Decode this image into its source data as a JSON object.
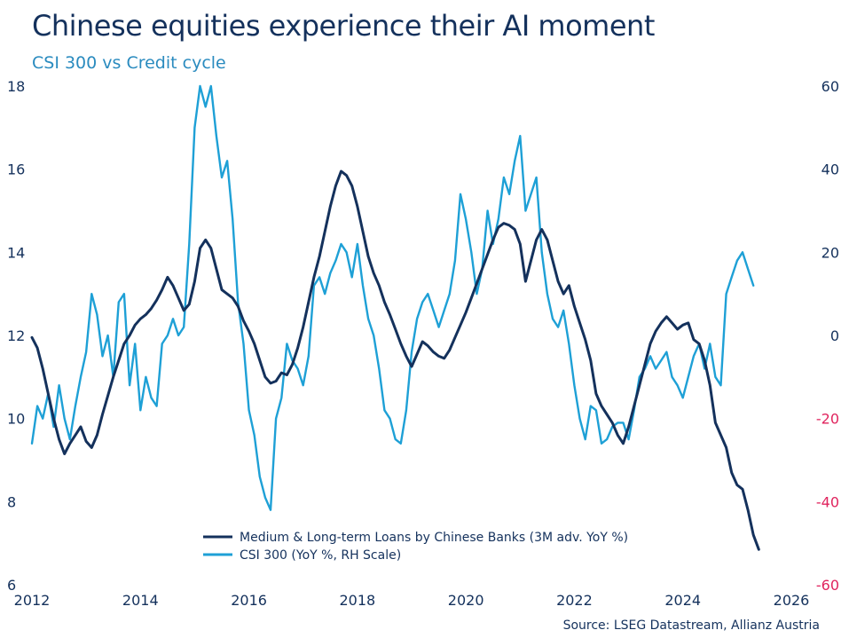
{
  "header": {
    "title": "Chinese equities experience their AI moment",
    "subtitle": "CSI 300 vs Credit cycle"
  },
  "source": "Source: LSEG Datastream, Allianz Austria",
  "colors": {
    "title": "#14315c",
    "subtitle": "#2a8bbf",
    "loans": "#14315c",
    "csi": "#1ea0d6",
    "negative_tick": "#e0245e",
    "axis_text": "#14315c"
  },
  "chart_data": {
    "type": "line",
    "x_ticks": [
      "2012",
      "2014",
      "2016",
      "2018",
      "2020",
      "2022",
      "2024",
      "2026"
    ],
    "x_tick_values": [
      2012,
      2014,
      2016,
      2018,
      2020,
      2022,
      2024,
      2026
    ],
    "xlim": [
      2012,
      2026
    ],
    "left_axis": {
      "ylim": [
        6,
        18
      ],
      "ticks": [
        "18",
        "16",
        "14",
        "12",
        "10",
        "8",
        "6"
      ],
      "tick_values": [
        18,
        16,
        14,
        12,
        10,
        8,
        6
      ]
    },
    "right_axis": {
      "ylim": [
        -60,
        60
      ],
      "ticks": [
        "60",
        "40",
        "20",
        "0",
        "-20",
        "-40",
        "-60"
      ],
      "tick_values": [
        60,
        40,
        20,
        0,
        -20,
        -40,
        -60
      ]
    },
    "legend": {
      "placement": "bottom-center",
      "entries": [
        "Medium & Long-term Loans by Chinese Banks (3M adv. YoY %)",
        "CSI 300 (YoY %, RH Scale)"
      ]
    },
    "series": [
      {
        "name": "Medium & Long-term Loans by Chinese Banks (3M adv. YoY %)",
        "axis": "left",
        "x": [
          2012.0,
          2012.1,
          2012.2,
          2012.3,
          2012.4,
          2012.5,
          2012.6,
          2012.7,
          2012.8,
          2012.9,
          2013.0,
          2013.1,
          2013.2,
          2013.3,
          2013.4,
          2013.5,
          2013.6,
          2013.7,
          2013.8,
          2013.9,
          2014.0,
          2014.1,
          2014.2,
          2014.3,
          2014.4,
          2014.5,
          2014.6,
          2014.7,
          2014.8,
          2014.9,
          2015.0,
          2015.1,
          2015.2,
          2015.3,
          2015.4,
          2015.5,
          2015.6,
          2015.7,
          2015.8,
          2015.9,
          2016.0,
          2016.1,
          2016.2,
          2016.3,
          2016.4,
          2016.5,
          2016.6,
          2016.7,
          2016.8,
          2016.9,
          2017.0,
          2017.1,
          2017.2,
          2017.3,
          2017.4,
          2017.5,
          2017.6,
          2017.7,
          2017.8,
          2017.9,
          2018.0,
          2018.1,
          2018.2,
          2018.3,
          2018.4,
          2018.5,
          2018.6,
          2018.7,
          2018.8,
          2018.9,
          2019.0,
          2019.1,
          2019.2,
          2019.3,
          2019.4,
          2019.5,
          2019.6,
          2019.7,
          2019.8,
          2019.9,
          2020.0,
          2020.1,
          2020.2,
          2020.3,
          2020.4,
          2020.5,
          2020.6,
          2020.7,
          2020.8,
          2020.9,
          2021.0,
          2021.1,
          2021.2,
          2021.3,
          2021.4,
          2021.5,
          2021.6,
          2021.7,
          2021.8,
          2021.9,
          2022.0,
          2022.1,
          2022.2,
          2022.3,
          2022.4,
          2022.5,
          2022.6,
          2022.7,
          2022.8,
          2022.9,
          2023.0,
          2023.1,
          2023.2,
          2023.3,
          2023.4,
          2023.5,
          2023.6,
          2023.7,
          2023.8,
          2023.9,
          2024.0,
          2024.1,
          2024.2,
          2024.3,
          2024.4,
          2024.5,
          2024.6,
          2024.7,
          2024.8,
          2024.9,
          2025.0,
          2025.1,
          2025.2,
          2025.3,
          2025.4
        ],
        "values": [
          11.95,
          11.7,
          11.2,
          10.6,
          10.0,
          9.5,
          9.15,
          9.4,
          9.6,
          9.8,
          9.45,
          9.3,
          9.6,
          10.1,
          10.55,
          11.0,
          11.4,
          11.8,
          12.0,
          12.25,
          12.4,
          12.5,
          12.65,
          12.85,
          13.1,
          13.4,
          13.2,
          12.9,
          12.6,
          12.75,
          13.3,
          14.1,
          14.3,
          14.1,
          13.6,
          13.1,
          13.0,
          12.9,
          12.7,
          12.35,
          12.1,
          11.8,
          11.4,
          11.0,
          10.85,
          10.9,
          11.1,
          11.05,
          11.3,
          11.7,
          12.2,
          12.8,
          13.4,
          13.9,
          14.5,
          15.1,
          15.6,
          15.95,
          15.85,
          15.6,
          15.1,
          14.5,
          13.9,
          13.5,
          13.2,
          12.8,
          12.5,
          12.15,
          11.8,
          11.5,
          11.25,
          11.55,
          11.85,
          11.75,
          11.6,
          11.5,
          11.45,
          11.65,
          11.95,
          12.25,
          12.55,
          12.9,
          13.25,
          13.6,
          13.95,
          14.3,
          14.6,
          14.7,
          14.65,
          14.55,
          14.2,
          13.3,
          13.8,
          14.3,
          14.55,
          14.3,
          13.8,
          13.3,
          13.0,
          13.2,
          12.7,
          12.3,
          11.9,
          11.4,
          10.6,
          10.3,
          10.1,
          9.9,
          9.6,
          9.4,
          9.8,
          10.3,
          10.8,
          11.3,
          11.8,
          12.1,
          12.3,
          12.45,
          12.3,
          12.15,
          12.25,
          12.3,
          11.9,
          11.8,
          11.4,
          10.8,
          9.9,
          9.6,
          9.3,
          8.7,
          8.4,
          8.3,
          7.8,
          7.2,
          6.85
        ]
      },
      {
        "name": "CSI 300 (YoY %, RH Scale)",
        "axis": "right",
        "x": [
          2012.0,
          2012.1,
          2012.2,
          2012.3,
          2012.4,
          2012.5,
          2012.6,
          2012.7,
          2012.8,
          2012.9,
          2013.0,
          2013.1,
          2013.2,
          2013.3,
          2013.4,
          2013.5,
          2013.6,
          2013.7,
          2013.8,
          2013.9,
          2014.0,
          2014.1,
          2014.2,
          2014.3,
          2014.4,
          2014.5,
          2014.6,
          2014.7,
          2014.8,
          2014.9,
          2015.0,
          2015.1,
          2015.2,
          2015.3,
          2015.4,
          2015.5,
          2015.6,
          2015.7,
          2015.8,
          2015.9,
          2016.0,
          2016.1,
          2016.2,
          2016.3,
          2016.4,
          2016.5,
          2016.6,
          2016.7,
          2016.8,
          2016.9,
          2017.0,
          2017.1,
          2017.2,
          2017.3,
          2017.4,
          2017.5,
          2017.6,
          2017.7,
          2017.8,
          2017.9,
          2018.0,
          2018.1,
          2018.2,
          2018.3,
          2018.4,
          2018.5,
          2018.6,
          2018.7,
          2018.8,
          2018.9,
          2019.0,
          2019.1,
          2019.2,
          2019.3,
          2019.4,
          2019.5,
          2019.6,
          2019.7,
          2019.8,
          2019.9,
          2020.0,
          2020.1,
          2020.2,
          2020.3,
          2020.4,
          2020.5,
          2020.6,
          2020.7,
          2020.8,
          2020.9,
          2021.0,
          2021.1,
          2021.2,
          2021.3,
          2021.4,
          2021.5,
          2021.6,
          2021.7,
          2021.8,
          2021.9,
          2022.0,
          2022.1,
          2022.2,
          2022.3,
          2022.4,
          2022.5,
          2022.6,
          2022.7,
          2022.8,
          2022.9,
          2023.0,
          2023.1,
          2023.2,
          2023.3,
          2023.4,
          2023.5,
          2023.6,
          2023.7,
          2023.8,
          2023.9,
          2024.0,
          2024.1,
          2024.2,
          2024.3,
          2024.4,
          2024.5,
          2024.6,
          2024.7,
          2024.8,
          2024.9,
          2025.0,
          2025.1,
          2025.2,
          2025.3
        ],
        "values": [
          -26,
          -17,
          -20,
          -14,
          -22,
          -12,
          -20,
          -25,
          -17,
          -10,
          -4,
          10,
          5,
          -5,
          0,
          -10,
          8,
          10,
          -12,
          -2,
          -18,
          -10,
          -15,
          -17,
          -2,
          0,
          4,
          0,
          2,
          22,
          50,
          60,
          55,
          60,
          48,
          38,
          42,
          28,
          8,
          -2,
          -18,
          -24,
          -34,
          -39,
          -42,
          -20,
          -15,
          -2,
          -6,
          -8,
          -12,
          -5,
          12,
          14,
          10,
          15,
          18,
          22,
          20,
          14,
          22,
          12,
          4,
          0,
          -8,
          -18,
          -20,
          -25,
          -26,
          -18,
          -4,
          4,
          8,
          10,
          6,
          2,
          6,
          10,
          18,
          34,
          28,
          20,
          10,
          16,
          30,
          22,
          28,
          38,
          34,
          42,
          48,
          30,
          34,
          38,
          20,
          10,
          4,
          2,
          6,
          -2,
          -12,
          -20,
          -25,
          -17,
          -18,
          -26,
          -25,
          -22,
          -21,
          -21,
          -25,
          -18,
          -10,
          -8,
          -5,
          -8,
          -6,
          -4,
          -10,
          -12,
          -15,
          -10,
          -5,
          -2,
          -8,
          -2,
          -10,
          -12,
          10,
          14,
          18,
          20,
          16,
          12
        ]
      }
    ]
  }
}
